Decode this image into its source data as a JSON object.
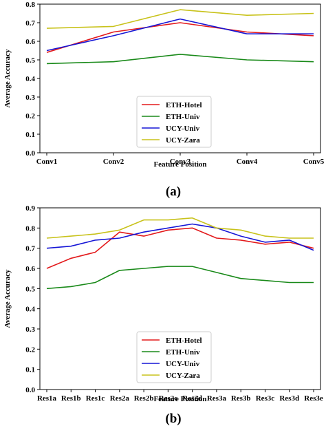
{
  "chart_data": [
    {
      "type": "line",
      "panel_label": "(a)",
      "xlabel": "Feature Position",
      "ylabel": "Average Accuracy",
      "categories": [
        "Conv1",
        "Conv2",
        "Conv3",
        "Conv4",
        "Conv5"
      ],
      "ylim": [
        0,
        0.8
      ],
      "yticks": [
        "0.0",
        "0.1",
        "0.2",
        "0.3",
        "0.4",
        "0.5",
        "0.6",
        "0.7",
        "0.8"
      ],
      "grid": false,
      "legend_position": "lower-center",
      "series": [
        {
          "name": "ETH-Hotel",
          "color": "#e31a1c",
          "values": [
            0.54,
            0.65,
            0.7,
            0.65,
            0.63
          ]
        },
        {
          "name": "ETH-Univ",
          "color": "#1a8a1a",
          "values": [
            0.48,
            0.49,
            0.53,
            0.5,
            0.49
          ]
        },
        {
          "name": "UCY-Univ",
          "color": "#1515d6",
          "values": [
            0.55,
            0.63,
            0.72,
            0.64,
            0.64
          ]
        },
        {
          "name": "UCY-Zara",
          "color": "#c8c21a",
          "values": [
            0.67,
            0.68,
            0.77,
            0.74,
            0.75
          ]
        }
      ]
    },
    {
      "type": "line",
      "panel_label": "(b)",
      "xlabel": "Feature Position",
      "ylabel": "Average Accuracy",
      "categories": [
        "Res1a",
        "Res1b",
        "Res1c",
        "Res2a",
        "Res2b",
        "Res2c",
        "Res2d",
        "Res3a",
        "Res3b",
        "Res3c",
        "Res3d",
        "Res3e"
      ],
      "ylim": [
        0,
        0.9
      ],
      "yticks": [
        "0.0",
        "0.1",
        "0.2",
        "0.3",
        "0.4",
        "0.5",
        "0.6",
        "0.7",
        "0.8",
        "0.9"
      ],
      "grid": false,
      "legend_position": "lower-center",
      "series": [
        {
          "name": "ETH-Hotel",
          "color": "#e31a1c",
          "values": [
            0.6,
            0.65,
            0.68,
            0.78,
            0.76,
            0.79,
            0.8,
            0.75,
            0.74,
            0.72,
            0.73,
            0.7
          ]
        },
        {
          "name": "ETH-Univ",
          "color": "#1a8a1a",
          "values": [
            0.5,
            0.51,
            0.53,
            0.59,
            0.6,
            0.61,
            0.61,
            0.58,
            0.55,
            0.54,
            0.53,
            0.53
          ]
        },
        {
          "name": "UCY-Univ",
          "color": "#1515d6",
          "values": [
            0.7,
            0.71,
            0.74,
            0.75,
            0.78,
            0.8,
            0.82,
            0.8,
            0.76,
            0.73,
            0.74,
            0.69
          ]
        },
        {
          "name": "UCY-Zara",
          "color": "#c8c21a",
          "values": [
            0.75,
            0.76,
            0.77,
            0.79,
            0.84,
            0.84,
            0.85,
            0.8,
            0.79,
            0.76,
            0.75,
            0.75
          ]
        }
      ]
    }
  ]
}
